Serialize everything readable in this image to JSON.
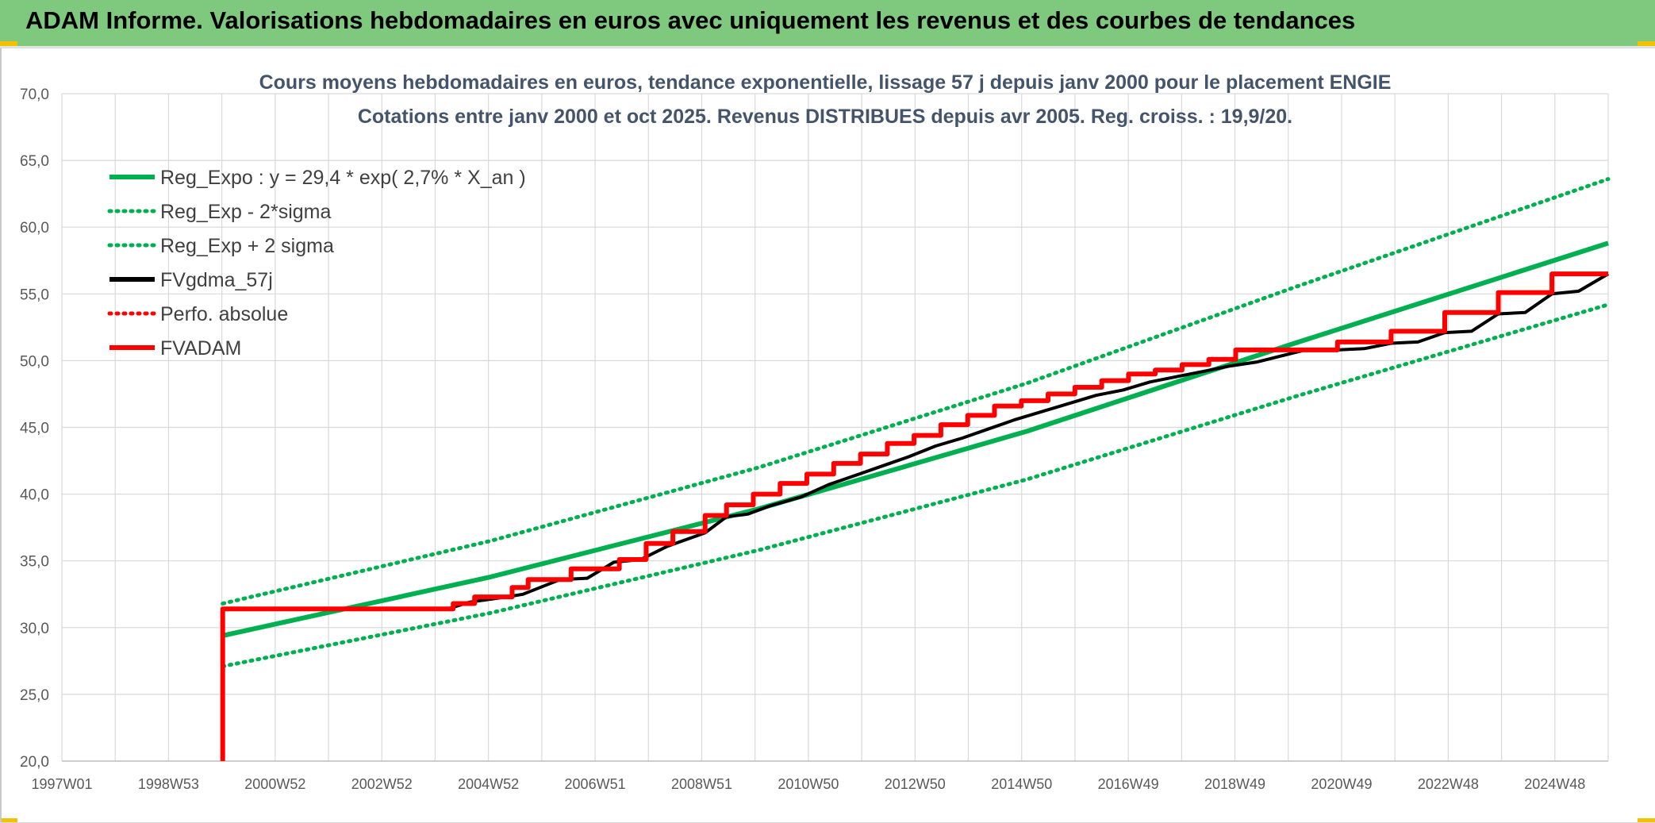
{
  "banner": {
    "title": "ADAM Informe. Valorisations hebdomadaires en euros avec uniquement les revenus et des courbes de tendances"
  },
  "colors": {
    "banner_bg": "#7fc97f",
    "trend_green": "#00b050",
    "fvadam_red": "#ff0000",
    "fvgdma_black": "#000000",
    "grid": "#d9d9d9"
  },
  "chart_data": {
    "type": "line",
    "title_lines": [
      "Cours moyens hebdomadaires en euros, tendance exponentielle, lissage 57 j depuis janv 2000 pour le placement ENGIE",
      "Cotations entre janv 2000 et oct 2025. Revenus DISTRIBUES depuis avr 2005. Reg. croiss. : 19,9/20."
    ],
    "x_tick_labels": [
      "1997W01",
      "1998W53",
      "2000W52",
      "2002W52",
      "2004W52",
      "2006W51",
      "2008W51",
      "2010W50",
      "2012W50",
      "2014W50",
      "2016W49",
      "2018W49",
      "2020W49",
      "2022W48",
      "2024W48"
    ],
    "x_range": [
      1997.0,
      2025.85
    ],
    "y_range": [
      20,
      70
    ],
    "y_ticks": [
      "20,0",
      "25,0",
      "30,0",
      "35,0",
      "40,0",
      "45,0",
      "50,0",
      "55,0",
      "60,0",
      "65,0",
      "70,0"
    ],
    "y_tick_values": [
      20,
      25,
      30,
      35,
      40,
      45,
      50,
      55,
      60,
      65,
      70
    ],
    "grid": true,
    "legend_position": "top-left",
    "series": [
      {
        "name": "Reg_Expo : y = 29,4 * exp( 2,7% *  X_an )",
        "style": "solid",
        "color": "#00b050",
        "x": [
          2000.0,
          2005.0,
          2010.0,
          2015.0,
          2020.0,
          2025.85
        ],
        "y": [
          29.4,
          33.8,
          38.9,
          44.7,
          51.3,
          58.8
        ]
      },
      {
        "name": "Reg_Exp - 2*sigma",
        "style": "dotted",
        "color": "#00b050",
        "x": [
          2000.0,
          2005.0,
          2010.0,
          2015.0,
          2020.0,
          2025.85
        ],
        "y": [
          27.1,
          31.1,
          35.8,
          41.1,
          47.3,
          54.2
        ]
      },
      {
        "name": "Reg_Exp + 2 sigma",
        "style": "dotted",
        "color": "#00b050",
        "x": [
          2000.0,
          2005.0,
          2010.0,
          2015.0,
          2020.0,
          2025.85
        ],
        "y": [
          31.8,
          36.5,
          42.0,
          48.3,
          55.5,
          63.6
        ]
      },
      {
        "name": "FVgdma_57j",
        "style": "solid",
        "color": "#000000",
        "x": [
          2000.0,
          2000.0,
          2004.2,
          2004.6,
          2005.3,
          2005.6,
          2006.3,
          2006.8,
          2007.3,
          2007.8,
          2008.3,
          2009.0,
          2009.4,
          2009.8,
          2010.2,
          2010.8,
          2011.3,
          2011.8,
          2012.3,
          2012.8,
          2013.3,
          2013.8,
          2014.3,
          2014.8,
          2015.3,
          2015.8,
          2016.3,
          2016.8,
          2017.3,
          2017.8,
          2018.3,
          2018.8,
          2019.3,
          2020.2,
          2020.8,
          2021.3,
          2021.8,
          2022.3,
          2022.8,
          2023.3,
          2023.8,
          2024.3,
          2024.8,
          2025.3,
          2025.85
        ],
        "y": [
          20.0,
          31.4,
          31.4,
          31.9,
          32.3,
          32.5,
          33.6,
          33.7,
          34.9,
          35.1,
          36.1,
          37.1,
          38.3,
          38.5,
          39.1,
          39.8,
          40.7,
          41.4,
          42.1,
          42.8,
          43.6,
          44.2,
          44.9,
          45.6,
          46.2,
          46.8,
          47.4,
          47.8,
          48.4,
          48.8,
          49.2,
          49.6,
          49.9,
          50.8,
          50.8,
          50.9,
          51.3,
          51.4,
          52.1,
          52.2,
          53.5,
          53.6,
          55.0,
          55.2,
          56.5
        ]
      },
      {
        "name": "Perfo. absolue",
        "style": "dotted",
        "color": "#ff0000",
        "x": [],
        "y": []
      },
      {
        "name": "FVADAM",
        "style": "solid",
        "color": "#ff0000",
        "x": [
          2000.0,
          2000.0,
          2004.3,
          2004.3,
          2004.7,
          2004.7,
          2005.4,
          2005.4,
          2005.7,
          2005.7,
          2006.5,
          2006.5,
          2007.4,
          2007.4,
          2007.9,
          2007.9,
          2008.4,
          2008.4,
          2009.0,
          2009.0,
          2009.4,
          2009.4,
          2009.9,
          2009.9,
          2010.4,
          2010.4,
          2010.9,
          2010.9,
          2011.4,
          2011.4,
          2011.9,
          2011.9,
          2012.4,
          2012.4,
          2012.9,
          2012.9,
          2013.4,
          2013.4,
          2013.9,
          2013.9,
          2014.4,
          2014.4,
          2014.9,
          2014.9,
          2015.4,
          2015.4,
          2015.9,
          2015.9,
          2016.4,
          2016.4,
          2016.9,
          2016.9,
          2017.4,
          2017.4,
          2017.9,
          2017.9,
          2018.4,
          2018.4,
          2018.9,
          2018.9,
          2019.4,
          2019.4,
          2020.8,
          2020.8,
          2021.8,
          2021.8,
          2022.8,
          2022.8,
          2023.8,
          2023.8,
          2024.8,
          2024.8,
          2025.6,
          2025.6,
          2025.85
        ],
        "y": [
          20.0,
          31.4,
          31.4,
          31.8,
          31.8,
          32.3,
          32.3,
          33.0,
          33.0,
          33.6,
          33.6,
          34.4,
          34.4,
          35.1,
          35.1,
          36.3,
          36.3,
          37.2,
          37.2,
          38.4,
          38.4,
          39.2,
          39.2,
          40.0,
          40.0,
          40.8,
          40.8,
          41.5,
          41.5,
          42.3,
          42.3,
          43.0,
          43.0,
          43.8,
          43.8,
          44.4,
          44.4,
          45.2,
          45.2,
          45.9,
          45.9,
          46.6,
          46.6,
          47.0,
          47.0,
          47.5,
          47.5,
          48.0,
          48.0,
          48.5,
          48.5,
          49.0,
          49.0,
          49.3,
          49.3,
          49.7,
          49.7,
          50.1,
          50.1,
          50.8,
          50.8,
          50.8,
          50.8,
          51.4,
          51.4,
          52.2,
          52.2,
          53.6,
          53.6,
          55.1,
          55.1,
          56.5,
          56.5,
          56.5,
          56.5
        ]
      }
    ]
  }
}
